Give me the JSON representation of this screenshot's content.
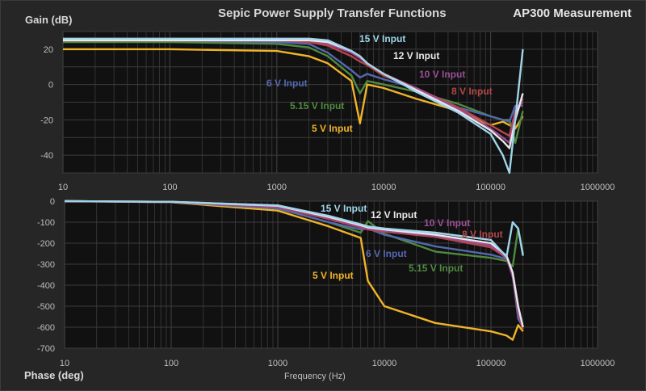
{
  "header": {
    "title": "Sepic Power Supply Transfer Functions",
    "subtitle": "AP300 Measurement",
    "gain_axis_label": "Gain (dB)",
    "phase_axis_label": "Phase (deg)",
    "frequency_axis_label": "Frequency (Hz)"
  },
  "colors": {
    "background": "#262626",
    "plot_background": "#111111",
    "grid": "#3c3c3c",
    "series": {
      "15 V Input": "#9fd4ea",
      "12 V Input": "#e8e8e8",
      "10 V Input": "#9c4f96",
      "8 V Input": "#b5464b",
      "6 V Input": "#5468b0",
      "5.15 V Input": "#4f8a3f",
      "5 V Input": "#f0b429"
    }
  },
  "chart_data": [
    {
      "type": "line",
      "title": "Sepic Power Supply Transfer Functions",
      "subtitle": "AP300 Measurement",
      "xlabel": "",
      "ylabel": "Gain (dB)",
      "xscale": "log",
      "xlim": [
        10,
        1000000
      ],
      "ylim": [
        -50,
        30
      ],
      "x_ticks": [
        "10",
        "100",
        "1000",
        "10000",
        "100000",
        "1000000"
      ],
      "y_ticks": [
        "20",
        "0",
        "-20",
        "-40"
      ],
      "grid": true,
      "legend": "inline labels",
      "x": [
        10,
        100,
        1000,
        2000,
        3000,
        5000,
        6000,
        7000,
        10000,
        20000,
        50000,
        100000,
        130000,
        150000,
        170000,
        200000
      ],
      "series": [
        {
          "name": "15 V Input",
          "values": [
            26,
            26,
            26,
            26,
            25,
            19,
            16,
            12,
            6,
            -4,
            -16,
            -28,
            -40,
            -50,
            -20,
            20
          ]
        },
        {
          "name": "12 V Input",
          "values": [
            25,
            25,
            25,
            25,
            24,
            19,
            16,
            12,
            6,
            -3,
            -15,
            -26,
            -32,
            -36,
            -20,
            -5
          ]
        },
        {
          "name": "10 V Input",
          "values": [
            25,
            25,
            25,
            25,
            23,
            18,
            15,
            12,
            6,
            -2,
            -14,
            -25,
            -30,
            -33,
            -18,
            -8
          ]
        },
        {
          "name": "8 V Input",
          "values": [
            25,
            25,
            25,
            24,
            22,
            16,
            13,
            11,
            5,
            -2,
            -13,
            -23,
            -27,
            -29,
            -15,
            -10
          ]
        },
        {
          "name": "6 V Input",
          "values": [
            25,
            25,
            24,
            23,
            18,
            8,
            4,
            6,
            3,
            -2,
            -13,
            -18,
            -20,
            -21,
            -12,
            -12
          ]
        },
        {
          "name": "5.15 V Input",
          "values": [
            24,
            24,
            23,
            21,
            16,
            5,
            -5,
            2,
            0,
            -4,
            -11,
            -18,
            -20,
            -20,
            -33,
            -15
          ]
        },
        {
          "name": "5 V Input",
          "values": [
            20,
            20,
            19,
            16,
            12,
            2,
            -22,
            0,
            -2,
            -8,
            -15,
            -23,
            -21,
            -23,
            -25,
            -18
          ]
        }
      ],
      "annotations": [
        "15 V Input",
        "12 V Input",
        "10 V Input",
        "8 V Input",
        "6 V Input",
        "5.15 V Input",
        "5 V Input"
      ]
    },
    {
      "type": "line",
      "title": "",
      "xlabel": "Frequency (Hz)",
      "ylabel": "Phase (deg)",
      "xscale": "log",
      "xlim": [
        10,
        1000000
      ],
      "ylim": [
        -700,
        0
      ],
      "x_ticks": [
        "10",
        "100",
        "1000",
        "10000",
        "100000",
        "1000000"
      ],
      "y_ticks": [
        "0",
        "-100",
        "-200",
        "-300",
        "-400",
        "-500",
        "-600",
        "-700"
      ],
      "grid": true,
      "legend": "inline labels",
      "x": [
        10,
        100,
        1000,
        3000,
        6000,
        7000,
        10000,
        30000,
        100000,
        140000,
        160000,
        180000,
        200000
      ],
      "series": [
        {
          "name": "15 V Input",
          "values": [
            0,
            -3,
            -20,
            -70,
            -110,
            -120,
            -130,
            -150,
            -185,
            -265,
            -100,
            -130,
            -260
          ]
        },
        {
          "name": "12 V Input",
          "values": [
            0,
            -3,
            -22,
            -75,
            -115,
            -125,
            -135,
            -160,
            -200,
            -260,
            -340,
            -500,
            -600
          ]
        },
        {
          "name": "10 V Input",
          "values": [
            0,
            -3,
            -25,
            -80,
            -120,
            -130,
            -140,
            -165,
            -210,
            -265,
            -360,
            -520,
            -600
          ]
        },
        {
          "name": "8 V Input",
          "values": [
            0,
            -4,
            -28,
            -85,
            -125,
            -135,
            -145,
            -170,
            -220,
            -270,
            -350,
            -530,
            -610
          ]
        },
        {
          "name": "6 V Input",
          "values": [
            0,
            -4,
            -35,
            -100,
            -135,
            -130,
            -160,
            -215,
            -255,
            -275,
            -350,
            -560,
            -600
          ]
        },
        {
          "name": "5.15 V Input",
          "values": [
            0,
            -4,
            -35,
            -100,
            -150,
            -95,
            -155,
            -240,
            -270,
            -285,
            -310,
            -130,
            -250
          ]
        },
        {
          "name": "5 V Input",
          "values": [
            0,
            -5,
            -45,
            -120,
            -175,
            -380,
            -500,
            -580,
            -620,
            -640,
            -660,
            -590,
            -620
          ]
        }
      ],
      "annotations": [
        "15 V Input",
        "12 V Input",
        "10 V Input",
        "8 V Input",
        "6 V Input",
        "5.15 V Input",
        "5 V Input"
      ]
    }
  ]
}
